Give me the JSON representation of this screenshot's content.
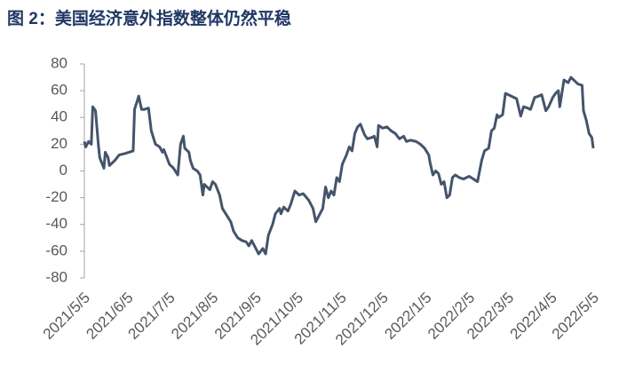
{
  "chart_data": {
    "type": "line",
    "title": "图 2：美国经济意外指数整体仍然平稳",
    "x": [
      "2021/5/5",
      "2021/5/6",
      "2021/5/8",
      "2021/5/10",
      "2021/5/11",
      "2021/5/13",
      "2021/5/15",
      "2021/5/16",
      "2021/5/19",
      "2021/5/20",
      "2021/5/22",
      "2021/5/23",
      "2021/5/27",
      "2021/5/30",
      "2021/6/3",
      "2021/6/6",
      "2021/6/9",
      "2021/6/10",
      "2021/6/13",
      "2021/6/15",
      "2021/6/17",
      "2021/6/20",
      "2021/6/22",
      "2021/6/25",
      "2021/6/28",
      "2021/6/30",
      "2021/7/1",
      "2021/7/5",
      "2021/7/8",
      "2021/7/11",
      "2021/7/13",
      "2021/7/15",
      "2021/7/16",
      "2021/7/19",
      "2021/7/20",
      "2021/7/22",
      "2021/7/25",
      "2021/7/27",
      "2021/7/29",
      "2021/7/30",
      "2021/8/1",
      "2021/8/3",
      "2021/8/5",
      "2021/8/7",
      "2021/8/10",
      "2021/8/12",
      "2021/8/15",
      "2021/8/18",
      "2021/8/20",
      "2021/8/23",
      "2021/8/26",
      "2021/8/29",
      "2021/8/31",
      "2021/9/2",
      "2021/9/5",
      "2021/9/7",
      "2021/9/10",
      "2021/9/12",
      "2021/9/14",
      "2021/9/17",
      "2021/9/19",
      "2021/9/22",
      "2021/9/23",
      "2021/9/25",
      "2021/9/28",
      "2021/9/30",
      "2021/10/3",
      "2021/10/6",
      "2021/10/9",
      "2021/10/13",
      "2021/10/16",
      "2021/10/18",
      "2021/10/21",
      "2021/10/23",
      "2021/10/25",
      "2021/10/27",
      "2021/10/29",
      "2021/10/31",
      "2021/11/2",
      "2021/11/4",
      "2021/11/6",
      "2021/11/9",
      "2021/11/11",
      "2021/11/13",
      "2021/11/15",
      "2021/11/17",
      "2021/11/19",
      "2021/11/22",
      "2021/11/24",
      "2021/11/27",
      "2021/11/29",
      "2021/12/1",
      "2021/12/2",
      "2021/12/5",
      "2021/12/8",
      "2021/12/11",
      "2021/12/14",
      "2021/12/17",
      "2021/12/20",
      "2021/12/22",
      "2021/12/25",
      "2021/12/29",
      "2022/1/1",
      "2022/1/4",
      "2022/1/7",
      "2022/1/8",
      "2022/1/10",
      "2022/1/12",
      "2022/1/14",
      "2022/1/16",
      "2022/1/18",
      "2022/1/20",
      "2022/1/22",
      "2022/1/24",
      "2022/1/26",
      "2022/1/29",
      "2022/2/1",
      "2022/2/5",
      "2022/2/8",
      "2022/2/11",
      "2022/2/14",
      "2022/2/16",
      "2022/2/19",
      "2022/2/21",
      "2022/2/23",
      "2022/2/25",
      "2022/2/26",
      "2022/3/1",
      "2022/3/3",
      "2022/3/5",
      "2022/3/9",
      "2022/3/11",
      "2022/3/14",
      "2022/3/16",
      "2022/3/19",
      "2022/3/21",
      "2022/3/24",
      "2022/3/27",
      "2022/3/29",
      "2022/4/1",
      "2022/4/3",
      "2022/4/6",
      "2022/4/8",
      "2022/4/10",
      "2022/4/11",
      "2022/4/14",
      "2022/4/17",
      "2022/4/19",
      "2022/4/22",
      "2022/4/24",
      "2022/4/27",
      "2022/4/28",
      "2022/4/30",
      "2022/5/2",
      "2022/5/4",
      "2022/5/5"
    ],
    "values": [
      22,
      18,
      22,
      20,
      48,
      45,
      20,
      10,
      2,
      14,
      10,
      4,
      8,
      12,
      13,
      14,
      15,
      46,
      56,
      46,
      46,
      47,
      30,
      20,
      18,
      14,
      16,
      5,
      2,
      -3,
      20,
      26,
      17,
      14,
      8,
      2,
      0,
      -3,
      -18,
      -10,
      -12,
      -14,
      -8,
      -10,
      -18,
      -28,
      -33,
      -38,
      -45,
      -50,
      -52,
      -53,
      -56,
      -52,
      -58,
      -62,
      -58,
      -62,
      -48,
      -40,
      -32,
      -28,
      -32,
      -27,
      -30,
      -25,
      -15,
      -18,
      -17,
      -22,
      -28,
      -38,
      -32,
      -28,
      -12,
      -20,
      -15,
      -18,
      -5,
      -8,
      5,
      12,
      18,
      15,
      28,
      33,
      35,
      27,
      24,
      25,
      26,
      18,
      34,
      32,
      33,
      30,
      28,
      24,
      26,
      22,
      23,
      22,
      20,
      17,
      12,
      6,
      -3,
      0,
      -2,
      -10,
      -8,
      -20,
      -18,
      -5,
      -3,
      -5,
      -6,
      -4,
      -6,
      -8,
      8,
      15,
      17,
      30,
      32,
      42,
      40,
      42,
      58,
      57,
      55,
      54,
      41,
      48,
      47,
      46,
      55,
      56,
      57,
      45,
      48,
      55,
      58,
      60,
      48,
      68,
      66,
      70,
      67,
      65,
      64,
      45,
      38,
      28,
      25,
      17
    ],
    "color": "#44546a",
    "xlim": [
      "2021/5/5",
      "2022/5/5"
    ],
    "xticks": [
      "2021/5/5",
      "2021/6/5",
      "2021/7/5",
      "2021/8/5",
      "2021/9/5",
      "2021/10/5",
      "2021/11/5",
      "2021/12/5",
      "2022/1/5",
      "2022/2/5",
      "2022/3/5",
      "2022/4/5",
      "2022/5/5"
    ],
    "ylim": [
      -80,
      80
    ],
    "yticks": [
      -80,
      -60,
      -40,
      -20,
      0,
      20,
      40,
      60,
      80
    ]
  }
}
